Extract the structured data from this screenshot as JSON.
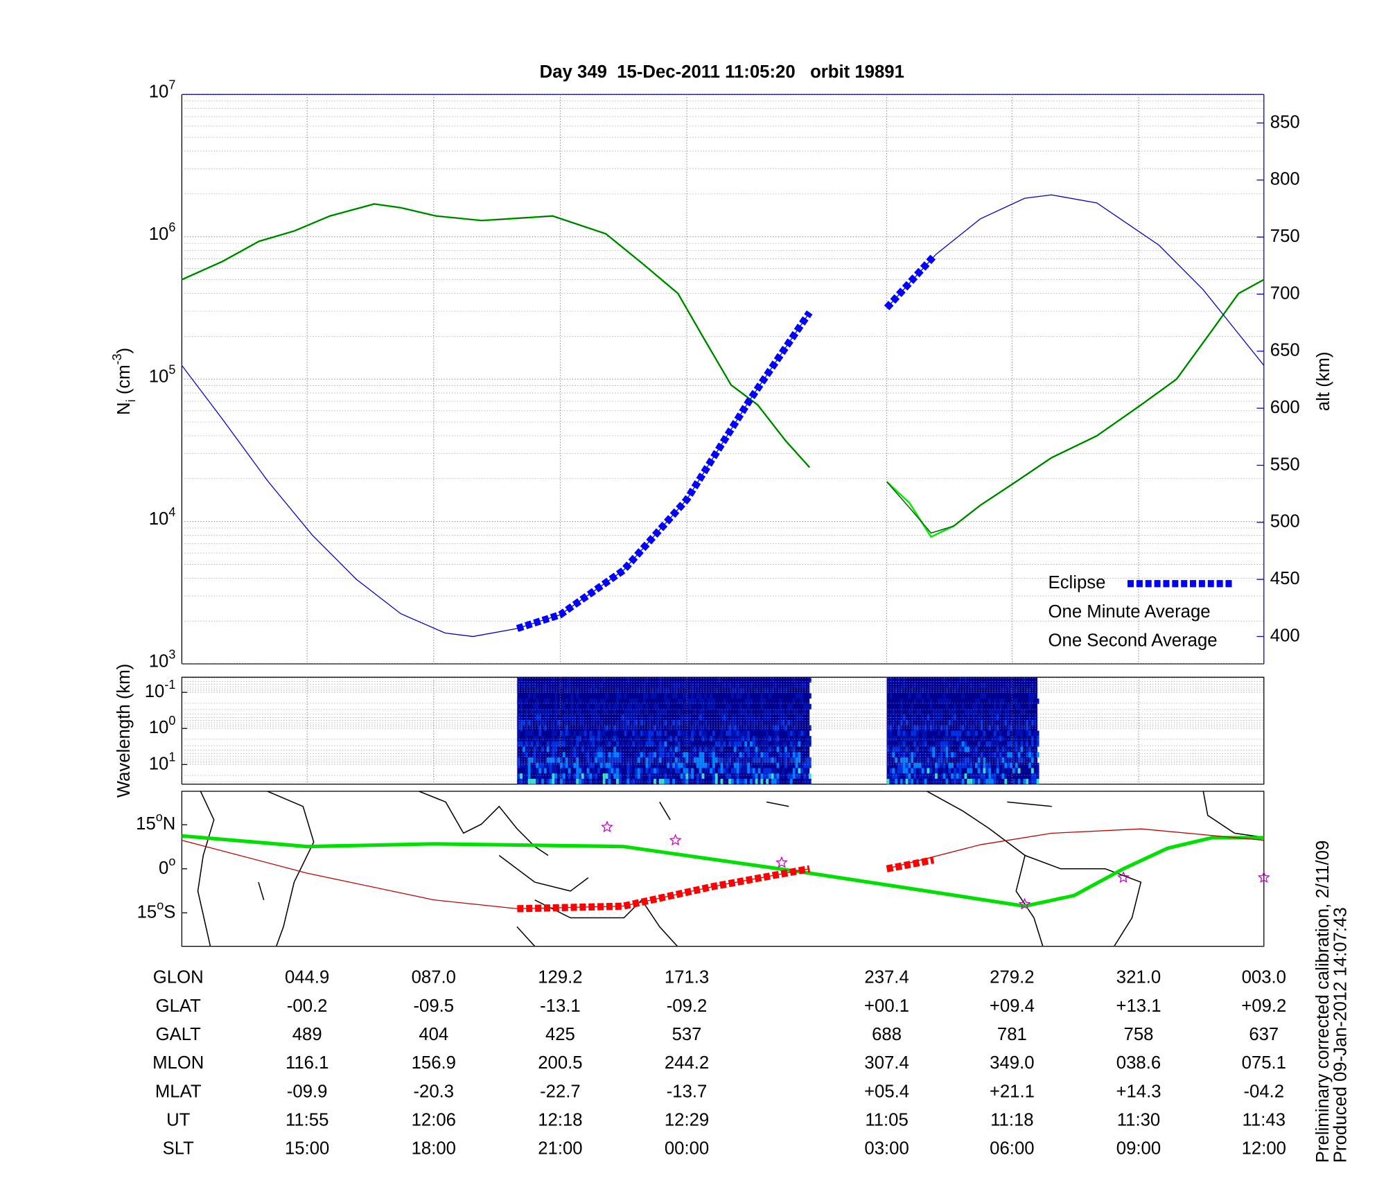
{
  "chart_data": [
    {
      "type": "line",
      "title": "Day 349  15-Dec-2011 11:05:20   orbit 19891",
      "ylabel": [
        "N",
        "i",
        " (cm",
        "-3",
        ")"
      ],
      "y2label": "alt (km)",
      "log": true,
      "grid": true,
      "minor_grid": true,
      "legend": "lower right",
      "xlim": [
        0,
        8.55
      ],
      "xticks": [
        0.99,
        1.99,
        2.99,
        3.99,
        5.57,
        6.56,
        7.56
      ],
      "ylim": [
        1000,
        10000000
      ],
      "yticks": [
        {
          "value": 1000,
          "label": [
            "10",
            "3"
          ]
        },
        {
          "value": 10000,
          "label": [
            "10",
            "4"
          ]
        },
        {
          "value": 100000,
          "label": [
            "10",
            "5"
          ]
        },
        {
          "value": 1000000,
          "label": [
            "10",
            "6"
          ]
        },
        {
          "value": 10000000,
          "label": [
            "10",
            "7"
          ]
        }
      ],
      "y2lim": [
        376,
        875
      ],
      "y2ticks": [
        400,
        450,
        500,
        550,
        600,
        650,
        700,
        750,
        800,
        850
      ],
      "y2color": "#0000c8",
      "series": [
        {
          "name": "One Second Average",
          "color": "#00ee00",
          "width": 2,
          "x": [
            0,
            0.32,
            0.61,
            0.89,
            1.17,
            1.52,
            1.73,
            2.01,
            2.37,
            2.93,
            3.35,
            3.63,
            3.92,
            4.13,
            4.34,
            4.55,
            4.77,
            4.96,
            5.27,
            5.57,
            5.75,
            5.92,
            6.1,
            6.31,
            6.59,
            6.87,
            7.23,
            7.58,
            7.86,
            8.14,
            8.35,
            8.55
          ],
          "values": [
            500000,
            670000,
            930000,
            1100000,
            1400000,
            1700000,
            1600000,
            1400000,
            1300000,
            1400000,
            1050000,
            660000,
            400000,
            190000,
            91000,
            66000,
            37000,
            24000,
            null,
            19000,
            13500,
            7800,
            9300,
            13000,
            19000,
            28000,
            40000,
            66000,
            100000,
            220000,
            400000,
            500000
          ]
        },
        {
          "name": "One Minute Average",
          "color": "#0b5d0b",
          "width": 1.2,
          "x": [
            0,
            0.32,
            0.61,
            0.89,
            1.17,
            1.52,
            1.73,
            2.01,
            2.37,
            2.93,
            3.35,
            3.63,
            3.92,
            4.13,
            4.34,
            4.55,
            4.77,
            4.96,
            5.27,
            5.57,
            5.75,
            5.92,
            6.1,
            6.31,
            6.59,
            6.87,
            7.23,
            7.58,
            7.86,
            8.14,
            8.35,
            8.55
          ],
          "values": [
            500000,
            670000,
            930000,
            1100000,
            1400000,
            1700000,
            1600000,
            1400000,
            1300000,
            1400000,
            1050000,
            660000,
            400000,
            190000,
            91000,
            66000,
            37000,
            24000,
            null,
            19000,
            12500,
            8300,
            9300,
            13000,
            19000,
            28000,
            40000,
            66000,
            100000,
            220000,
            400000,
            500000
          ]
        },
        {
          "color": "#0000c8",
          "axis": "y2",
          "width": 1,
          "x": [
            0,
            0.32,
            0.68,
            1.03,
            1.38,
            1.73,
            2.08,
            2.3,
            2.65,
            2.99,
            3.49,
            3.99,
            4.48,
            4.96,
            5.27,
            5.57,
            5.96,
            6.31,
            6.66,
            6.87,
            7.23,
            7.72,
            8.07,
            8.55
          ],
          "values": [
            637.5,
            590.6,
            536,
            489,
            450,
            420,
            403,
            400,
            407,
            419,
            458,
            520,
            606,
            684,
            null,
            688,
            735,
            766,
            784,
            787,
            780,
            743,
            704,
            637.5
          ]
        },
        {
          "name": "Eclipse",
          "color": "#0000ff",
          "axis": "y2",
          "width": 8,
          "dashed": true,
          "x": [
            2.65,
            2.99,
            3.49,
            3.99,
            4.48,
            4.96,
            5.27,
            5.57,
            5.94
          ],
          "values": [
            407,
            419,
            458,
            520,
            606,
            684,
            null,
            688,
            733
          ]
        }
      ]
    },
    {
      "type": "spectrogram",
      "ylabel": "Wavelength (km)",
      "log": true,
      "xlim": [
        0,
        8.55
      ],
      "xticks": [
        0.99,
        1.99,
        2.99,
        3.99,
        5.57,
        6.56,
        7.56
      ],
      "ylim": [
        35,
        0.038
      ],
      "yticks": [
        {
          "value": 0.1,
          "label": [
            "10",
            "-1"
          ]
        },
        {
          "value": 1,
          "label": [
            "10",
            "0"
          ]
        },
        {
          "value": 10,
          "label": [
            "10",
            "1"
          ]
        }
      ],
      "x_ranges": [
        [
          2.65,
          4.96
        ],
        [
          5.57,
          6.76
        ]
      ]
    },
    {
      "type": "map",
      "xlim": [
        0,
        8.55
      ],
      "ylim": [
        -26.4,
        26.4
      ],
      "yticks": [
        {
          "value": 15,
          "label": [
            "15",
            "o",
            "N"
          ]
        },
        {
          "value": 0,
          "label": [
            "0",
            "o"
          ]
        },
        {
          "value": -15,
          "label": [
            "15",
            "o",
            "S"
          ]
        }
      ],
      "series": [
        {
          "color": "#00e000",
          "width": 4,
          "x": [
            0,
            0.99,
            1.99,
            3.49,
            3.99,
            4.96,
            5.57,
            6.66,
            7.05,
            7.44,
            7.79,
            8.14,
            8.55
          ],
          "values": [
            11.2,
            7.6,
            8.5,
            7.6,
            4.5,
            -1.5,
            -5.5,
            -12.7,
            -9.1,
            0,
            7,
            10.6,
            10.6
          ]
        },
        {
          "color": "#c00000",
          "width": 1,
          "x": [
            0,
            0.99,
            1.99,
            2.65,
            3.49,
            4.2,
            4.96,
            5.27,
            5.57,
            6.31,
            6.87,
            7.58,
            8.55
          ],
          "values": [
            9.7,
            -1.5,
            -10.6,
            -13.6,
            -12.7,
            -6,
            0,
            null,
            0,
            8.2,
            12.1,
            13.6,
            9.7
          ]
        },
        {
          "color": "#ff0000",
          "width": 8,
          "dashed": true,
          "x": [
            2.65,
            3.49,
            4.2,
            4.96,
            5.27,
            5.57,
            5.94
          ],
          "values": [
            -13.6,
            -12.7,
            -6,
            0,
            null,
            0,
            3.0
          ]
        },
        {
          "color": "#cc00cc",
          "marker": "star",
          "x": [
            3.36,
            3.9,
            4.74,
            6.66,
            7.44,
            8.55
          ],
          "values": [
            14.2,
            9.7,
            2.1,
            -12.1,
            -3,
            -3
          ]
        }
      ]
    }
  ],
  "ephemeris": {
    "rows": [
      {
        "label": "GLON",
        "values": [
          "044.9",
          "087.0",
          "129.2",
          "171.3",
          "237.4",
          "279.2",
          "321.0",
          "003.0"
        ]
      },
      {
        "label": "GLAT",
        "values": [
          "-00.2",
          "-09.5",
          "-13.1",
          "-09.2",
          "+00.1",
          "+09.4",
          "+13.1",
          "+09.2"
        ]
      },
      {
        "label": "GALT",
        "values": [
          "489",
          "404",
          "425",
          "537",
          "688",
          "781",
          "758",
          "637"
        ]
      },
      {
        "label": "MLON",
        "values": [
          "116.1",
          "156.9",
          "200.5",
          "244.2",
          "307.4",
          "349.0",
          "038.6",
          "075.1"
        ]
      },
      {
        "label": "MLAT",
        "values": [
          "-09.9",
          "-20.3",
          "-22.7",
          "-13.7",
          "+05.4",
          "+21.1",
          "+14.3",
          "-04.2"
        ]
      },
      {
        "label": "UT",
        "values": [
          "11:55",
          "12:06",
          "12:18",
          "12:29",
          "11:05",
          "11:18",
          "11:30",
          "11:43"
        ]
      },
      {
        "label": "SLT",
        "values": [
          "15:00",
          "18:00",
          "21:00",
          "00:00",
          "03:00",
          "06:00",
          "09:00",
          "12:00"
        ]
      }
    ]
  },
  "footnotes": [
    "Preliminary corrected calibration, 2/11/09",
    "Produced 09-Jan-2012 14:07:43"
  ]
}
